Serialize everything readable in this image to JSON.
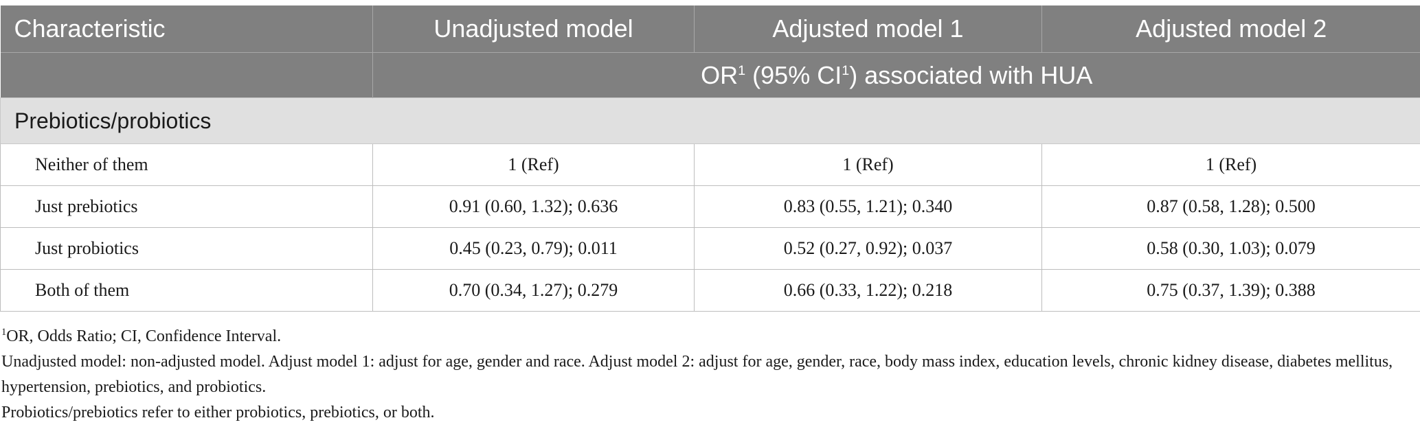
{
  "header": {
    "columns": [
      "Characteristic",
      "Unadjusted model",
      "Adjusted model 1",
      "Adjusted model 2"
    ],
    "subheader": {
      "or_text": "OR",
      "or_sup": "1",
      "ci_open": " (95% CI",
      "ci_sup": "1",
      "ci_close": ") associated with HUA"
    }
  },
  "section": {
    "title": "Prebiotics/probiotics"
  },
  "rows": [
    {
      "label": "Neither of them",
      "values": [
        "1 (Ref)",
        "1 (Ref)",
        "1 (Ref)"
      ]
    },
    {
      "label": "Just prebiotics",
      "values": [
        "0.91 (0.60, 1.32); 0.636",
        "0.83 (0.55, 1.21); 0.340",
        "0.87 (0.58, 1.28); 0.500"
      ]
    },
    {
      "label": "Just probiotics",
      "values": [
        "0.45 (0.23, 0.79); 0.011",
        "0.52 (0.27, 0.92); 0.037",
        "0.58 (0.30, 1.03); 0.079"
      ]
    },
    {
      "label": "Both of them",
      "values": [
        "0.70 (0.34, 1.27); 0.279",
        "0.66 (0.33, 1.22); 0.218",
        "0.75 (0.37, 1.39); 0.388"
      ]
    }
  ],
  "footnotes": {
    "note1_sup": "1",
    "note1_text": "OR, Odds Ratio; CI, Confidence Interval.",
    "note2_text": "Unadjusted model: non-adjusted model. Adjust model 1: adjust for age, gender and race. Adjust model 2: adjust for age, gender, race, body mass index, education levels, chronic kidney disease, diabetes mellitus, hypertension, prebiotics, and probiotics.",
    "note3_text": "Probiotics/prebiotics refer to either probiotics, prebiotics, or both."
  },
  "colors": {
    "header_bg": "#808080",
    "section_bg": "#e0e0e0",
    "border": "#bdbdbd"
  }
}
